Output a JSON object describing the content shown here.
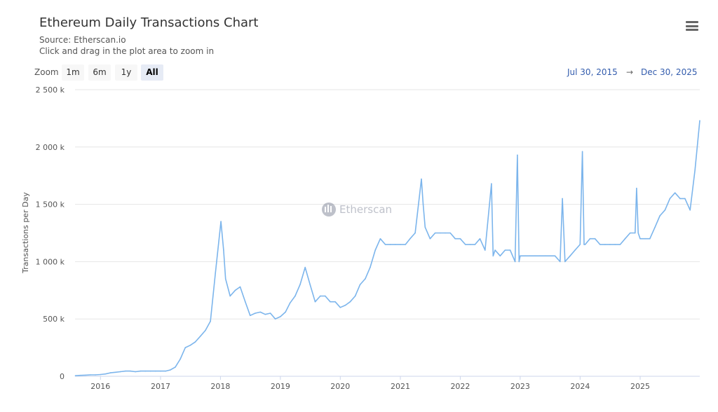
{
  "header": {
    "title": "Ethereum Daily Transactions Chart",
    "source": "Source: Etherscan.io",
    "hint": "Click and drag in the plot area to zoom in",
    "menu_icon": "hamburger-menu-icon"
  },
  "range_selector": {
    "label": "Zoom",
    "buttons": [
      "1m",
      "6m",
      "1y",
      "All"
    ],
    "active": "All",
    "from": "Jul 30, 2015",
    "arrow": "→",
    "to": "Dec 30, 2025"
  },
  "watermark": "Etherscan",
  "chart_data": {
    "type": "line",
    "title": "Ethereum Daily Transactions Chart",
    "ylabel": "Transactions per Day",
    "xlabel": "",
    "xlim": [
      "2015-07-30",
      "2025-12-30"
    ],
    "ylim": [
      0,
      2500000
    ],
    "yticks": [
      "0",
      "500 k",
      "1 000 k",
      "1 500 k",
      "2 000 k",
      "2 500 k"
    ],
    "xticks": [
      "2016",
      "2017",
      "2018",
      "2019",
      "2020",
      "2021",
      "2022",
      "2023",
      "2024",
      "2025"
    ],
    "grid": true,
    "legend": "none",
    "color": "#7cb5ec",
    "series": [
      {
        "values": [
          [
            "2015-08-01",
            5000
          ],
          [
            "2015-09-01",
            8000
          ],
          [
            "2015-10-01",
            10000
          ],
          [
            "2015-11-01",
            12000
          ],
          [
            "2015-12-01",
            12000
          ],
          [
            "2016-01-01",
            15000
          ],
          [
            "2016-02-01",
            20000
          ],
          [
            "2016-03-01",
            30000
          ],
          [
            "2016-04-01",
            35000
          ],
          [
            "2016-05-01",
            40000
          ],
          [
            "2016-06-01",
            45000
          ],
          [
            "2016-07-01",
            45000
          ],
          [
            "2016-08-01",
            40000
          ],
          [
            "2016-09-01",
            45000
          ],
          [
            "2016-10-01",
            45000
          ],
          [
            "2016-11-01",
            45000
          ],
          [
            "2016-12-01",
            45000
          ],
          [
            "2017-01-01",
            45000
          ],
          [
            "2017-02-01",
            45000
          ],
          [
            "2017-03-01",
            55000
          ],
          [
            "2017-04-01",
            80000
          ],
          [
            "2017-05-01",
            150000
          ],
          [
            "2017-06-01",
            250000
          ],
          [
            "2017-07-01",
            270000
          ],
          [
            "2017-08-01",
            300000
          ],
          [
            "2017-09-01",
            350000
          ],
          [
            "2017-10-01",
            400000
          ],
          [
            "2017-11-01",
            480000
          ],
          [
            "2017-12-01",
            900000
          ],
          [
            "2018-01-04",
            1350000
          ],
          [
            "2018-01-20",
            1100000
          ],
          [
            "2018-02-01",
            850000
          ],
          [
            "2018-03-01",
            700000
          ],
          [
            "2018-04-01",
            750000
          ],
          [
            "2018-05-01",
            780000
          ],
          [
            "2018-06-01",
            650000
          ],
          [
            "2018-07-01",
            530000
          ],
          [
            "2018-08-01",
            550000
          ],
          [
            "2018-09-01",
            560000
          ],
          [
            "2018-10-01",
            540000
          ],
          [
            "2018-11-01",
            550000
          ],
          [
            "2018-12-01",
            500000
          ],
          [
            "2019-01-01",
            520000
          ],
          [
            "2019-02-01",
            560000
          ],
          [
            "2019-03-01",
            640000
          ],
          [
            "2019-04-01",
            700000
          ],
          [
            "2019-05-01",
            800000
          ],
          [
            "2019-06-01",
            950000
          ],
          [
            "2019-07-01",
            800000
          ],
          [
            "2019-08-01",
            650000
          ],
          [
            "2019-09-01",
            700000
          ],
          [
            "2019-10-01",
            700000
          ],
          [
            "2019-11-01",
            650000
          ],
          [
            "2019-12-01",
            650000
          ],
          [
            "2020-01-01",
            600000
          ],
          [
            "2020-02-01",
            620000
          ],
          [
            "2020-03-01",
            650000
          ],
          [
            "2020-04-01",
            700000
          ],
          [
            "2020-05-01",
            800000
          ],
          [
            "2020-06-01",
            850000
          ],
          [
            "2020-07-01",
            950000
          ],
          [
            "2020-08-01",
            1100000
          ],
          [
            "2020-09-01",
            1200000
          ],
          [
            "2020-10-01",
            1150000
          ],
          [
            "2020-11-01",
            1150000
          ],
          [
            "2020-12-01",
            1150000
          ],
          [
            "2021-01-01",
            1150000
          ],
          [
            "2021-02-01",
            1150000
          ],
          [
            "2021-03-01",
            1200000
          ],
          [
            "2021-04-01",
            1250000
          ],
          [
            "2021-05-09",
            1720000
          ],
          [
            "2021-05-20",
            1500000
          ],
          [
            "2021-06-01",
            1300000
          ],
          [
            "2021-07-01",
            1200000
          ],
          [
            "2021-08-01",
            1250000
          ],
          [
            "2021-09-01",
            1250000
          ],
          [
            "2021-10-01",
            1250000
          ],
          [
            "2021-11-01",
            1250000
          ],
          [
            "2021-12-01",
            1200000
          ],
          [
            "2022-01-01",
            1200000
          ],
          [
            "2022-02-01",
            1150000
          ],
          [
            "2022-03-01",
            1150000
          ],
          [
            "2022-04-01",
            1150000
          ],
          [
            "2022-05-01",
            1200000
          ],
          [
            "2022-06-01",
            1100000
          ],
          [
            "2022-07-10",
            1680000
          ],
          [
            "2022-07-20",
            1050000
          ],
          [
            "2022-08-01",
            1100000
          ],
          [
            "2022-09-01",
            1050000
          ],
          [
            "2022-10-01",
            1100000
          ],
          [
            "2022-11-01",
            1100000
          ],
          [
            "2022-12-01",
            1000000
          ],
          [
            "2022-12-15",
            1930000
          ],
          [
            "2022-12-25",
            1000000
          ],
          [
            "2023-01-01",
            1050000
          ],
          [
            "2023-02-01",
            1050000
          ],
          [
            "2023-03-01",
            1050000
          ],
          [
            "2023-04-01",
            1050000
          ],
          [
            "2023-05-01",
            1050000
          ],
          [
            "2023-06-01",
            1050000
          ],
          [
            "2023-07-01",
            1050000
          ],
          [
            "2023-08-01",
            1050000
          ],
          [
            "2023-09-01",
            1000000
          ],
          [
            "2023-09-15",
            1550000
          ],
          [
            "2023-10-01",
            1000000
          ],
          [
            "2023-11-01",
            1050000
          ],
          [
            "2023-12-01",
            1100000
          ],
          [
            "2024-01-01",
            1150000
          ],
          [
            "2024-01-15",
            1960000
          ],
          [
            "2024-01-25",
            1150000
          ],
          [
            "2024-02-01",
            1150000
          ],
          [
            "2024-03-01",
            1200000
          ],
          [
            "2024-04-01",
            1200000
          ],
          [
            "2024-05-01",
            1150000
          ],
          [
            "2024-06-01",
            1150000
          ],
          [
            "2024-07-01",
            1150000
          ],
          [
            "2024-08-01",
            1150000
          ],
          [
            "2024-09-01",
            1150000
          ],
          [
            "2024-10-01",
            1200000
          ],
          [
            "2024-11-01",
            1250000
          ],
          [
            "2024-12-01",
            1250000
          ],
          [
            "2024-12-10",
            1640000
          ],
          [
            "2024-12-20",
            1250000
          ],
          [
            "2025-01-01",
            1200000
          ],
          [
            "2025-02-01",
            1200000
          ],
          [
            "2025-03-01",
            1200000
          ],
          [
            "2025-04-01",
            1300000
          ],
          [
            "2025-05-01",
            1400000
          ],
          [
            "2025-06-01",
            1450000
          ],
          [
            "2025-07-01",
            1550000
          ],
          [
            "2025-08-01",
            1600000
          ],
          [
            "2025-09-01",
            1550000
          ],
          [
            "2025-10-01",
            1550000
          ],
          [
            "2025-11-01",
            1450000
          ],
          [
            "2025-12-01",
            1800000
          ],
          [
            "2025-12-30",
            2230000
          ]
        ]
      }
    ]
  }
}
